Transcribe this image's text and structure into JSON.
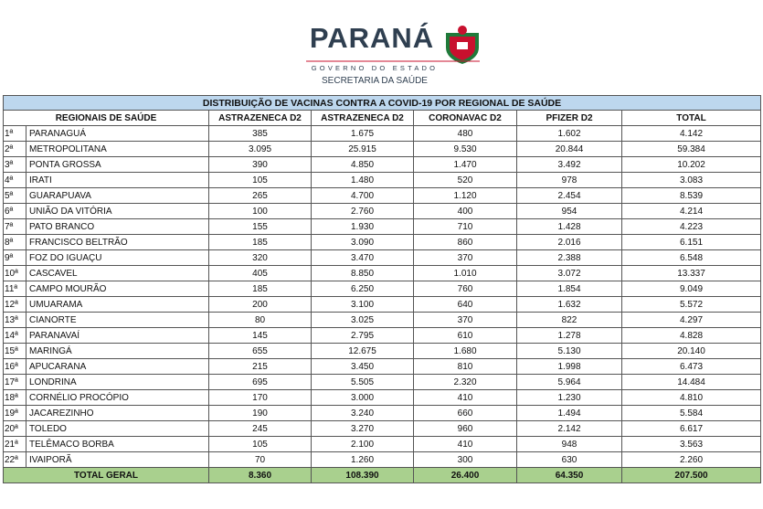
{
  "header": {
    "title": "PARANÁ",
    "subtitle": "GOVERNO DO ESTADO",
    "department": "SECRETARIA DA SAÚDE"
  },
  "table": {
    "title": "DISTRIBUIÇÃO DE VACINAS CONTRA A COVID-19 POR REGIONAL DE SAÚDE",
    "columns": [
      "REGIONAIS DE SAÚDE",
      "ASTRAZENECA D2",
      "ASTRAZENECA D2",
      "CORONAVAC D2",
      "PFIZER D2",
      "TOTAL"
    ],
    "rows": [
      [
        "1ª",
        "PARANAGUÁ",
        "385",
        "1.675",
        "480",
        "1.602",
        "4.142"
      ],
      [
        "2ª",
        "METROPOLITANA",
        "3.095",
        "25.915",
        "9.530",
        "20.844",
        "59.384"
      ],
      [
        "3ª",
        "PONTA GROSSA",
        "390",
        "4.850",
        "1.470",
        "3.492",
        "10.202"
      ],
      [
        "4ª",
        "IRATI",
        "105",
        "1.480",
        "520",
        "978",
        "3.083"
      ],
      [
        "5ª",
        "GUARAPUAVA",
        "265",
        "4.700",
        "1.120",
        "2.454",
        "8.539"
      ],
      [
        "6ª",
        "UNIÃO DA VITÓRIA",
        "100",
        "2.760",
        "400",
        "954",
        "4.214"
      ],
      [
        "7ª",
        "PATO BRANCO",
        "155",
        "1.930",
        "710",
        "1.428",
        "4.223"
      ],
      [
        "8ª",
        "FRANCISCO BELTRÃO",
        "185",
        "3.090",
        "860",
        "2.016",
        "6.151"
      ],
      [
        "9ª",
        "FOZ DO IGUAÇU",
        "320",
        "3.470",
        "370",
        "2.388",
        "6.548"
      ],
      [
        "10ª",
        "CASCAVEL",
        "405",
        "8.850",
        "1.010",
        "3.072",
        "13.337"
      ],
      [
        "11ª",
        "CAMPO MOURÃO",
        "185",
        "6.250",
        "760",
        "1.854",
        "9.049"
      ],
      [
        "12ª",
        "UMUARAMA",
        "200",
        "3.100",
        "640",
        "1.632",
        "5.572"
      ],
      [
        "13ª",
        "CIANORTE",
        "80",
        "3.025",
        "370",
        "822",
        "4.297"
      ],
      [
        "14ª",
        "PARANAVAÍ",
        "145",
        "2.795",
        "610",
        "1.278",
        "4.828"
      ],
      [
        "15ª",
        "MARINGÁ",
        "655",
        "12.675",
        "1.680",
        "5.130",
        "20.140"
      ],
      [
        "16ª",
        "APUCARANA",
        "215",
        "3.450",
        "810",
        "1.998",
        "6.473"
      ],
      [
        "17ª",
        "LONDRINA",
        "695",
        "5.505",
        "2.320",
        "5.964",
        "14.484"
      ],
      [
        "18ª",
        "CORNÉLIO PROCÓPIO",
        "170",
        "3.000",
        "410",
        "1.230",
        "4.810"
      ],
      [
        "19ª",
        "JACAREZINHO",
        "190",
        "3.240",
        "660",
        "1.494",
        "5.584"
      ],
      [
        "20ª",
        "TOLEDO",
        "245",
        "3.270",
        "960",
        "2.142",
        "6.617"
      ],
      [
        "21ª",
        "TELÊMACO BORBA",
        "105",
        "2.100",
        "410",
        "948",
        "3.563"
      ],
      [
        "22ª",
        "IVAIPORÃ",
        "70",
        "1.260",
        "300",
        "630",
        "2.260"
      ]
    ],
    "total": [
      "TOTAL GERAL",
      "8.360",
      "108.390",
      "26.400",
      "64.350",
      "207.500"
    ]
  }
}
